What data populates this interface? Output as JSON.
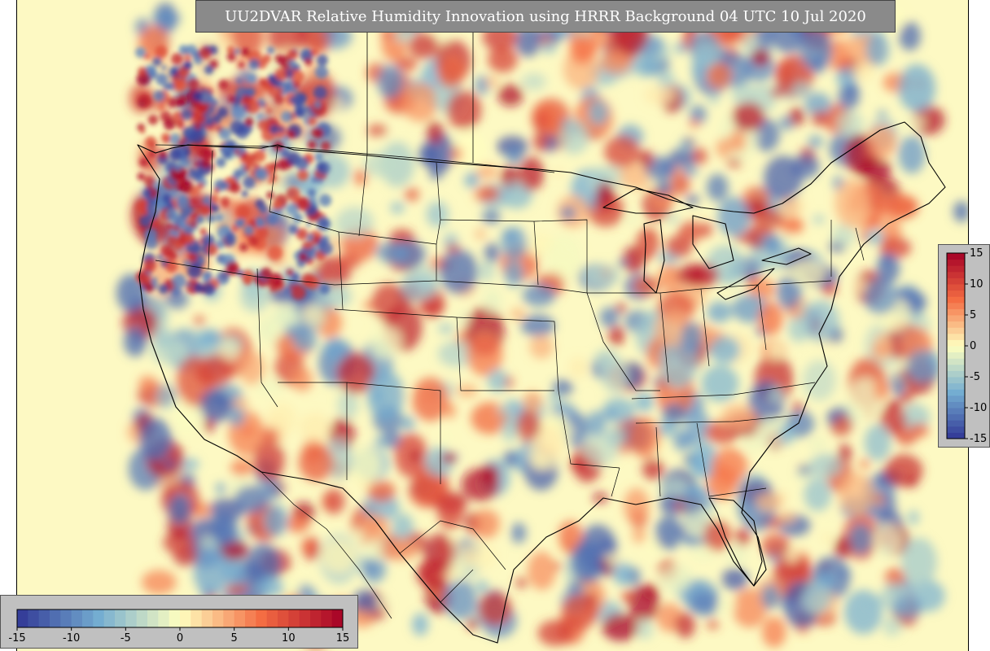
{
  "title": "UU2DVAR Relative Humidity Innovation using HRRR Background 04 UTC 10 Jul 2020",
  "colorbar": {
    "min": -15,
    "max": 15,
    "ticks": [
      "-15",
      "-10",
      "-5",
      "0",
      "5",
      "10",
      "15"
    ],
    "tick_values": [
      -15,
      -10,
      -5,
      0,
      5,
      10,
      15
    ],
    "colormap": "RdYlBu_r",
    "colors": {
      "neg_max": "#313695",
      "neg_mid": "#74add1",
      "neutral": "#ffffbf",
      "pos_mid": "#f46d43",
      "pos_max": "#a50026"
    }
  },
  "map": {
    "region": "Continental United States",
    "background_color": "#fdf9c3",
    "boundary_color": "#000000"
  }
}
